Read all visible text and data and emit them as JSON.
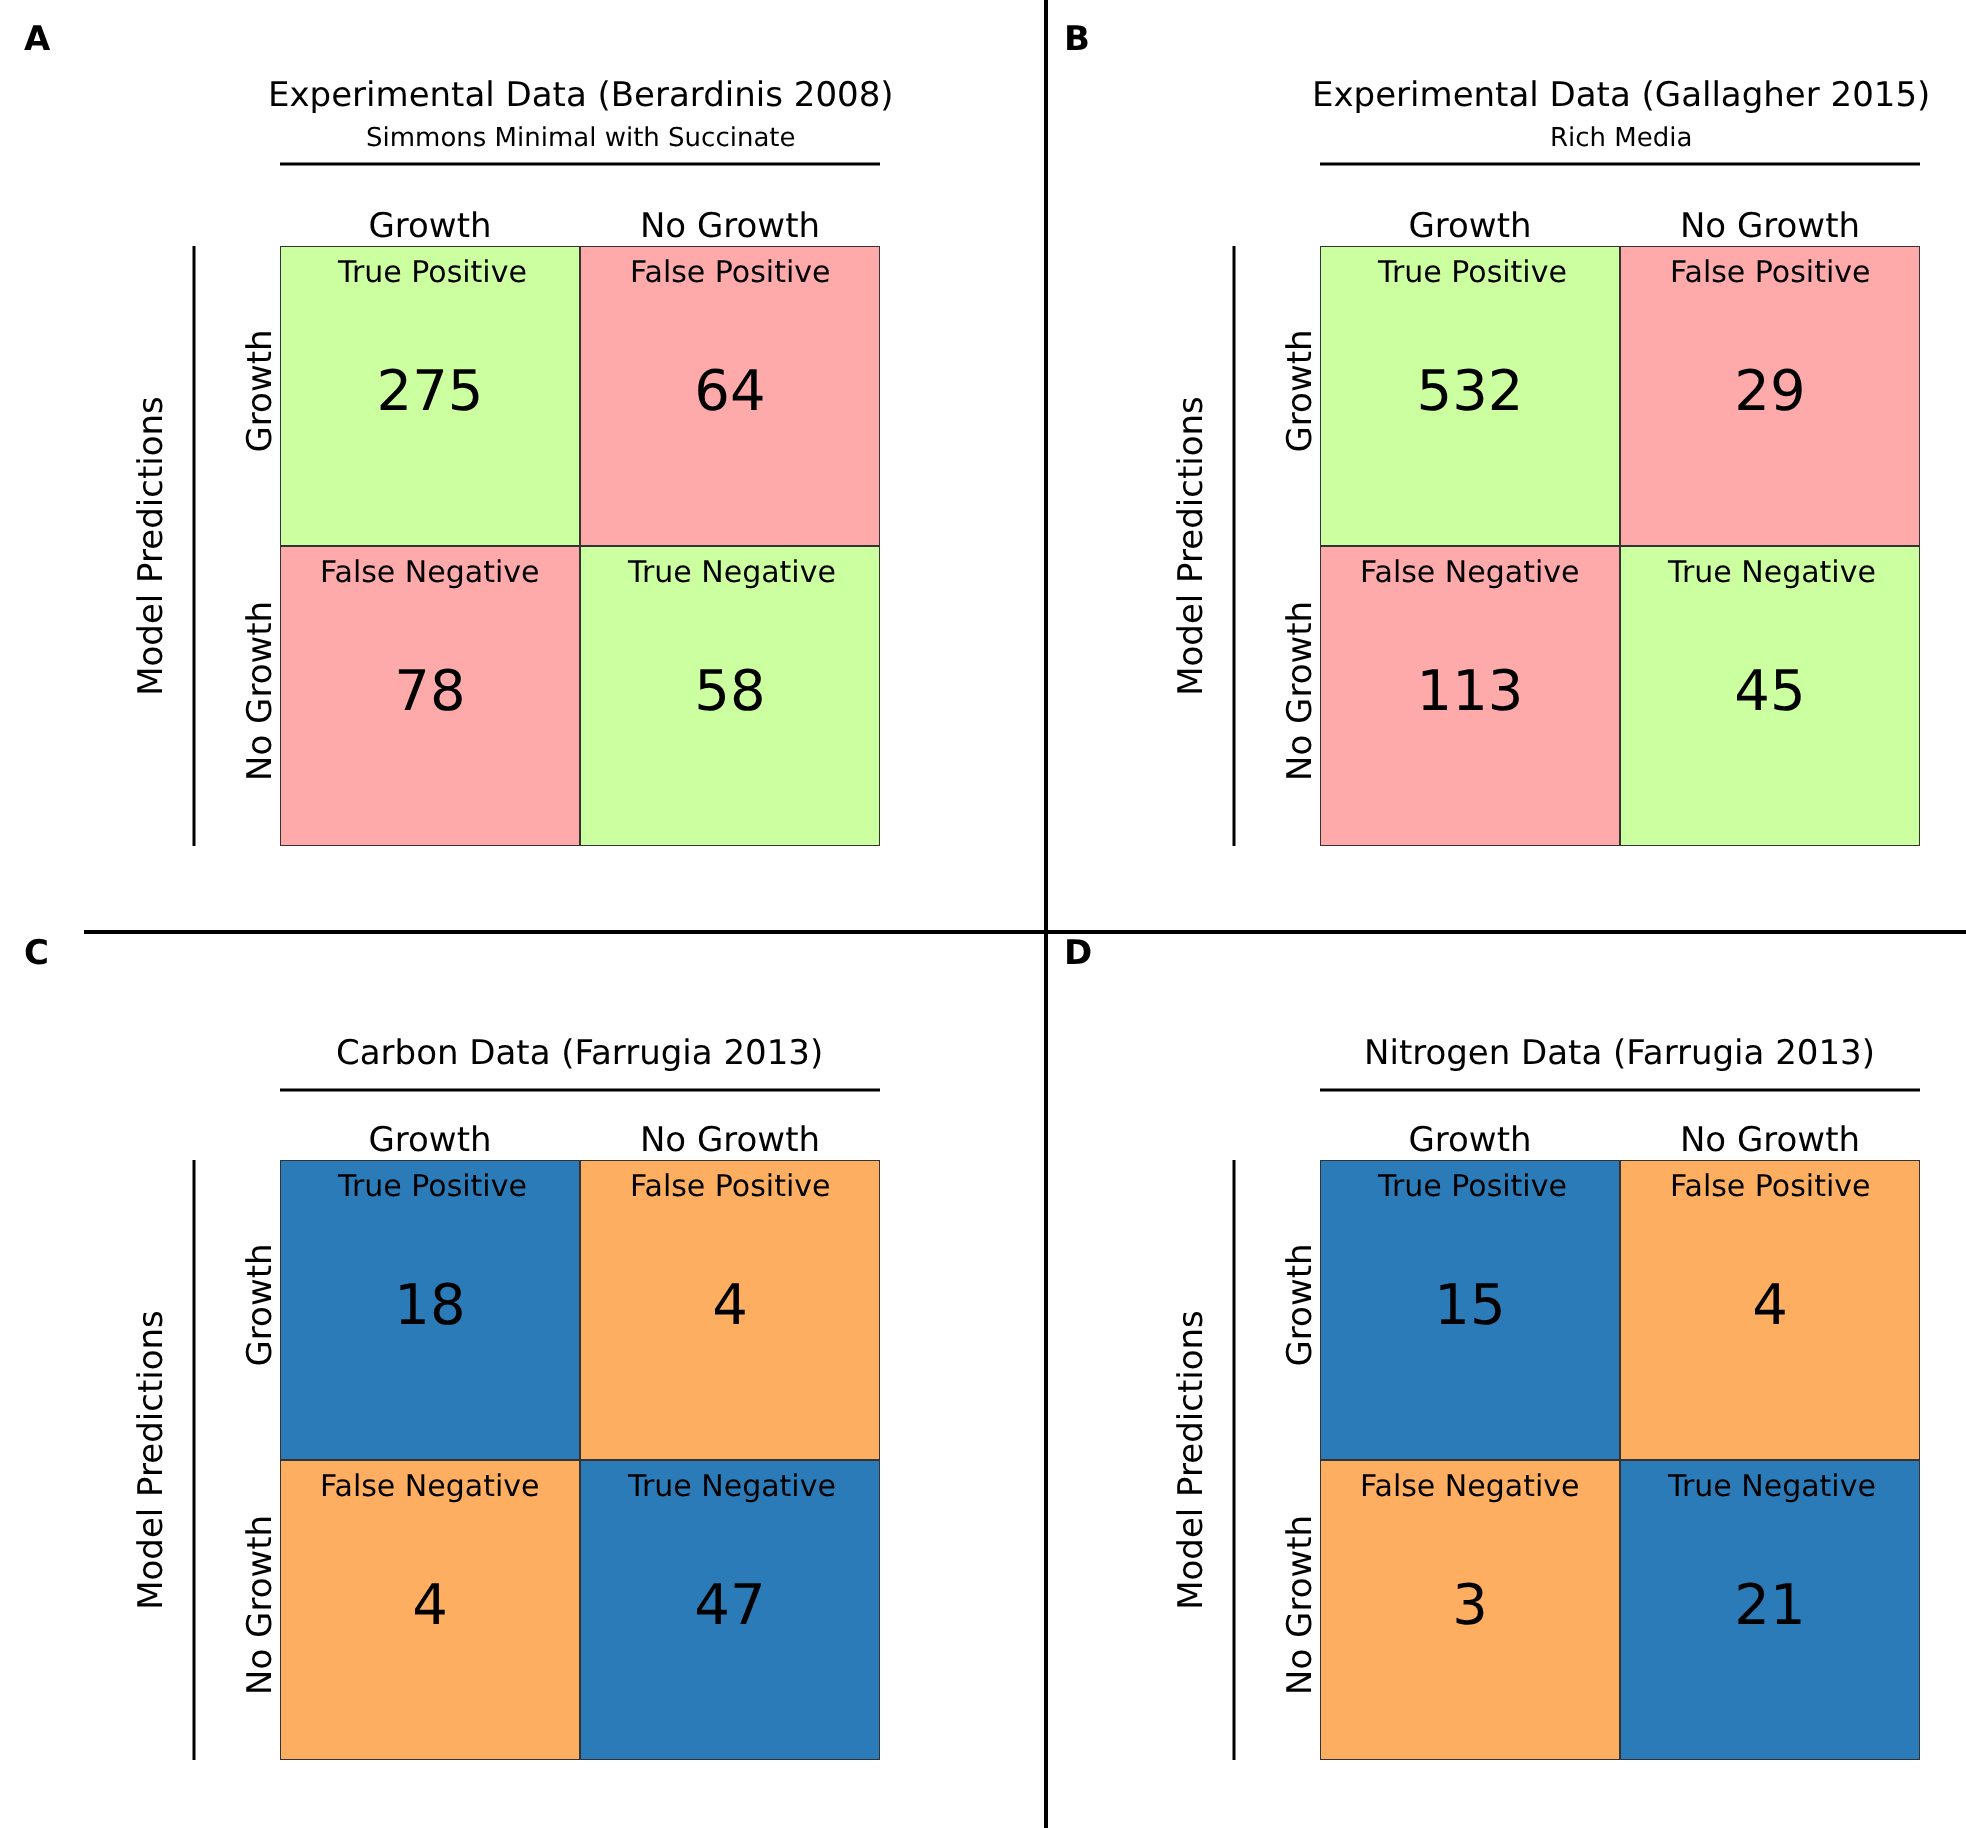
{
  "chart_data": [
    {
      "type": "heatmap",
      "title": "Experimental Data (Berardinis 2008)",
      "subtitle": "Simmons Minimal with Succinate",
      "ylabel": "Model Predictions",
      "categories": [
        "Growth",
        "No Growth"
      ],
      "y_categories": [
        "Growth",
        "No Growth"
      ],
      "cells": [
        [
          275,
          64
        ],
        [
          78,
          58
        ]
      ],
      "data_labels": true,
      "colors": [
        [
          "#ccffa0",
          "#ffaaaa"
        ],
        [
          "#ffaaaa",
          "#ccffa0"
        ]
      ],
      "annotations": [
        "A",
        "True Positive",
        "False Positive",
        "False Negative",
        "True Negative"
      ]
    },
    {
      "type": "heatmap",
      "title": "Experimental Data (Gallagher 2015)",
      "subtitle": "Rich Media",
      "ylabel": "Model Predictions",
      "categories": [
        "Growth",
        "No Growth"
      ],
      "y_categories": [
        "Growth",
        "No Growth"
      ],
      "cells": [
        [
          532,
          29
        ],
        [
          113,
          45
        ]
      ],
      "data_labels": true,
      "colors": [
        [
          "#ccffa0",
          "#ffaaaa"
        ],
        [
          "#ffaaaa",
          "#ccffa0"
        ]
      ],
      "annotations": [
        "B",
        "True Positive",
        "False Positive",
        "False Negative",
        "True Negative"
      ]
    },
    {
      "type": "heatmap",
      "title": "Carbon Data (Farrugia 2013)",
      "ylabel": "Model Predictions",
      "categories": [
        "Growth",
        "No Growth"
      ],
      "y_categories": [
        "Growth",
        "No Growth"
      ],
      "cells": [
        [
          18,
          4
        ],
        [
          4,
          47
        ]
      ],
      "data_labels": true,
      "colors": [
        [
          "#2b7bb9",
          "#fdae61"
        ],
        [
          "#fdae61",
          "#2b7bb9"
        ]
      ],
      "annotations": [
        "C",
        "True Positive",
        "False Positive",
        "False Negative",
        "True Negative"
      ]
    },
    {
      "type": "heatmap",
      "title": "Nitrogen Data (Farrugia 2013)",
      "ylabel": "Model Predictions",
      "categories": [
        "Growth",
        "No Growth"
      ],
      "y_categories": [
        "Growth",
        "No Growth"
      ],
      "cells": [
        [
          15,
          4
        ],
        [
          3,
          21
        ]
      ],
      "data_labels": true,
      "colors": [
        [
          "#2b7bb9",
          "#fdae61"
        ],
        [
          "#fdae61",
          "#2b7bb9"
        ]
      ],
      "annotations": [
        "D",
        "True Positive",
        "False Positive",
        "False Negative",
        "True Negative"
      ]
    }
  ]
}
